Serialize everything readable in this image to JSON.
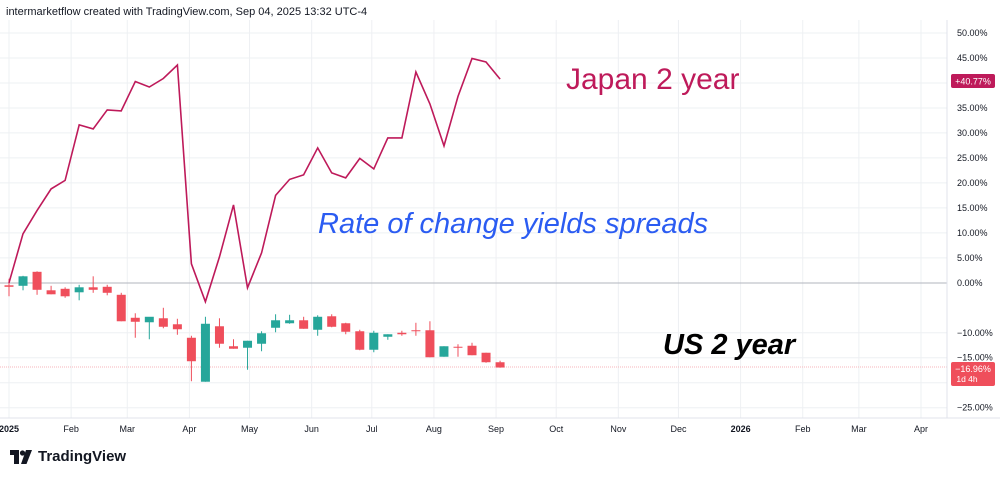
{
  "header": {
    "text": "intermarketflow created with TradingView.com, Sep 04, 2025 13:32 UTC-4"
  },
  "brand": {
    "name": "TradingView"
  },
  "colors": {
    "japan_line": "#be1a5a",
    "candle_up": "#26a69a",
    "candle_down": "#ef4e5b",
    "rate_text": "#2b5cf2",
    "us_text": "#000000",
    "zero_line": "#b2b5be",
    "grid": "#eef0f3"
  },
  "annotations": {
    "japan": "Japan 2 year",
    "rate": "Rate of change yields spreads",
    "us": "US 2 year"
  },
  "labels": {
    "japan_last": "+40.77%",
    "us_last": "−16.96%",
    "us_countdown": "1d 4h"
  },
  "chart_data": {
    "type": "line",
    "x_axis_labels": [
      "2025",
      "Feb",
      "Mar",
      "Apr",
      "May",
      "Jun",
      "Jul",
      "Aug",
      "Sep",
      "Oct",
      "Nov",
      "Dec",
      "2026",
      "Feb",
      "Mar",
      "Apr"
    ],
    "y_ticks": [
      50,
      45,
      40,
      35,
      30,
      25,
      20,
      15,
      10,
      5,
      0,
      -10,
      -15,
      -20,
      -25
    ],
    "y_tick_labels": [
      "50.00%",
      "45.00%",
      "40.00%",
      "35.00%",
      "30.00%",
      "25.00%",
      "20.00%",
      "15.00%",
      "10.00%",
      "5.00%",
      "0.00%",
      "−10.00%",
      "−15.00%",
      "−20.00%",
      "−25.00%"
    ],
    "ylim": [
      -27,
      52
    ],
    "grid": true,
    "series": [
      {
        "name": "Japan 2 year",
        "type": "line",
        "x": [
          "2025-01-01",
          "2025-01-08",
          "2025-01-15",
          "2025-01-22",
          "2025-01-29",
          "2025-02-05",
          "2025-02-12",
          "2025-02-19",
          "2025-02-26",
          "2025-03-05",
          "2025-03-12",
          "2025-03-19",
          "2025-03-26",
          "2025-04-02",
          "2025-04-09",
          "2025-04-16",
          "2025-04-23",
          "2025-04-30",
          "2025-05-07",
          "2025-05-14",
          "2025-05-21",
          "2025-05-28",
          "2025-06-04",
          "2025-06-11",
          "2025-06-18",
          "2025-06-25",
          "2025-07-02",
          "2025-07-09",
          "2025-07-16",
          "2025-07-23",
          "2025-07-30",
          "2025-08-06",
          "2025-08-13",
          "2025-08-20",
          "2025-08-27",
          "2025-09-03"
        ],
        "values": [
          0,
          9.8,
          14.5,
          18.8,
          20.5,
          31.6,
          30.8,
          34.6,
          34.4,
          40.3,
          39.2,
          40.9,
          43.6,
          3.8,
          -3.8,
          5.2,
          15.6,
          -1.0,
          6.0,
          17.5,
          20.7,
          21.6,
          27.0,
          22.0,
          21.0,
          24.9,
          22.8,
          29.0,
          29.0,
          42.2,
          35.8,
          27.4,
          37.3,
          44.9,
          44.2,
          40.77
        ]
      },
      {
        "name": "US 2 year",
        "type": "candlestick",
        "candles": [
          {
            "x": "2025-01-01",
            "o": -0.5,
            "h": 0.8,
            "l": -2.7,
            "c": -0.8
          },
          {
            "x": "2025-01-08",
            "o": -0.6,
            "h": 1.4,
            "l": -1.5,
            "c": 1.3
          },
          {
            "x": "2025-01-15",
            "o": 2.2,
            "h": 2.3,
            "l": -2.4,
            "c": -1.4
          },
          {
            "x": "2025-01-22",
            "o": -1.5,
            "h": -0.6,
            "l": -2.3,
            "c": -2.3
          },
          {
            "x": "2025-01-29",
            "o": -1.2,
            "h": -0.9,
            "l": -3.0,
            "c": -2.7
          },
          {
            "x": "2025-02-05",
            "o": -1.9,
            "h": -0.4,
            "l": -3.5,
            "c": -0.9
          },
          {
            "x": "2025-02-12",
            "o": -0.9,
            "h": 1.3,
            "l": -2.0,
            "c": -1.4
          },
          {
            "x": "2025-02-19",
            "o": -0.8,
            "h": -0.4,
            "l": -2.5,
            "c": -2.0
          },
          {
            "x": "2025-02-26",
            "o": -2.4,
            "h": -2.0,
            "l": -7.7,
            "c": -7.7
          },
          {
            "x": "2025-03-05",
            "o": -7.0,
            "h": -6.1,
            "l": -11.0,
            "c": -7.8
          },
          {
            "x": "2025-03-12",
            "o": -7.9,
            "h": -7.0,
            "l": -11.3,
            "c": -6.8
          },
          {
            "x": "2025-03-19",
            "o": -7.1,
            "h": -5.0,
            "l": -9.1,
            "c": -8.8
          },
          {
            "x": "2025-03-26",
            "o": -8.3,
            "h": -7.2,
            "l": -10.4,
            "c": -9.3
          },
          {
            "x": "2025-04-02",
            "o": -11.0,
            "h": -10.6,
            "l": -19.7,
            "c": -15.7
          },
          {
            "x": "2025-04-09",
            "o": -19.8,
            "h": -6.8,
            "l": -19.8,
            "c": -8.2
          },
          {
            "x": "2025-04-16",
            "o": -8.7,
            "h": -7.1,
            "l": -13.0,
            "c": -12.2
          },
          {
            "x": "2025-04-23",
            "o": -12.7,
            "h": -11.3,
            "l": -13.2,
            "c": -13.2
          },
          {
            "x": "2025-04-30",
            "o": -13.0,
            "h": -11.6,
            "l": -17.4,
            "c": -11.6
          },
          {
            "x": "2025-05-07",
            "o": -12.2,
            "h": -9.7,
            "l": -13.7,
            "c": -10.1
          },
          {
            "x": "2025-05-14",
            "o": -9.0,
            "h": -6.3,
            "l": -9.9,
            "c": -7.5
          },
          {
            "x": "2025-05-21",
            "o": -8.1,
            "h": -6.4,
            "l": -8.2,
            "c": -7.5
          },
          {
            "x": "2025-05-28",
            "o": -7.5,
            "h": -6.8,
            "l": -9.2,
            "c": -9.2
          },
          {
            "x": "2025-06-04",
            "o": -9.4,
            "h": -6.5,
            "l": -10.6,
            "c": -6.8
          },
          {
            "x": "2025-06-11",
            "o": -6.7,
            "h": -6.3,
            "l": -8.9,
            "c": -8.8
          },
          {
            "x": "2025-06-18",
            "o": -8.1,
            "h": -8.0,
            "l": -10.3,
            "c": -9.8
          },
          {
            "x": "2025-06-25",
            "o": -9.7,
            "h": -9.4,
            "l": -13.5,
            "c": -13.4
          },
          {
            "x": "2025-07-02",
            "o": -13.4,
            "h": -9.6,
            "l": -13.9,
            "c": -10.0
          },
          {
            "x": "2025-07-09",
            "o": -10.8,
            "h": -10.3,
            "l": -11.4,
            "c": -10.3
          },
          {
            "x": "2025-07-16",
            "o": -10.0,
            "h": -9.6,
            "l": -10.6,
            "c": -10.3
          },
          {
            "x": "2025-07-23",
            "o": -9.5,
            "h": -8.0,
            "l": -10.6,
            "c": -9.7
          },
          {
            "x": "2025-07-30",
            "o": -9.5,
            "h": -7.7,
            "l": -14.9,
            "c": -14.9
          },
          {
            "x": "2025-08-06",
            "o": -14.8,
            "h": -12.7,
            "l": -14.8,
            "c": -12.7
          },
          {
            "x": "2025-08-13",
            "o": -12.8,
            "h": -12.3,
            "l": -14.8,
            "c": -13.0
          },
          {
            "x": "2025-08-20",
            "o": -12.6,
            "h": -12.0,
            "l": -14.5,
            "c": -14.5
          },
          {
            "x": "2025-08-27",
            "o": -14.0,
            "h": -14.0,
            "l": -16.0,
            "c": -15.9
          },
          {
            "x": "2025-09-03",
            "o": -15.9,
            "h": -15.6,
            "l": -17.0,
            "c": -16.96
          }
        ]
      }
    ]
  }
}
